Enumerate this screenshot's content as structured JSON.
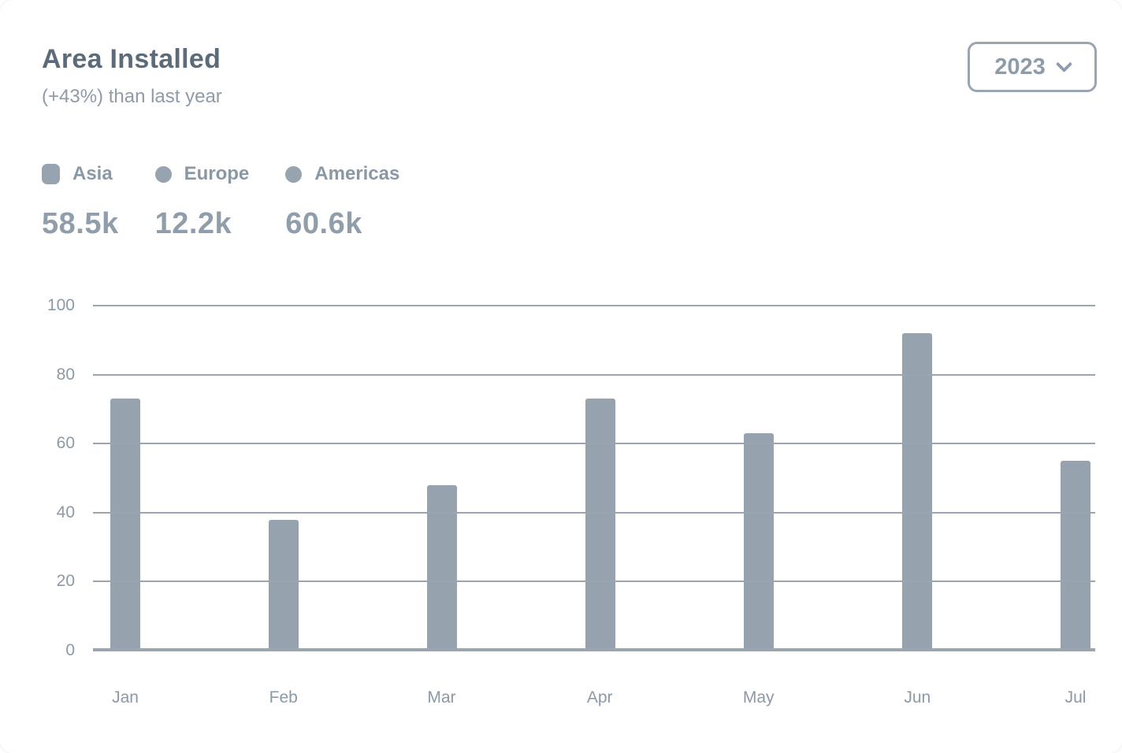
{
  "header": {
    "title": "Area Installed",
    "subtitle": "(+43%) than last year"
  },
  "year_selector": {
    "value": "2023",
    "icon": "chevron-down-icon"
  },
  "legend": {
    "items": [
      {
        "label": "Asia",
        "value": "58.5k",
        "marker_icon": "square-marker-icon",
        "marker_color": "#97A3AF"
      },
      {
        "label": "Europe",
        "value": "12.2k",
        "marker_icon": "dot-marker-icon",
        "marker_color": "#97A3AF"
      },
      {
        "label": "Americas",
        "value": "60.6k",
        "marker_icon": "dot-marker-icon",
        "marker_color": "#97A3AF"
      }
    ]
  },
  "chart_data": {
    "type": "bar",
    "title": "Area Installed",
    "categories": [
      "Jan",
      "Feb",
      "Mar",
      "Apr",
      "May",
      "Jun",
      "Jul"
    ],
    "values": [
      73,
      38,
      48,
      73,
      63,
      92,
      55
    ],
    "xlabel": "",
    "ylabel": "",
    "ylim": [
      0,
      100
    ],
    "yticks": [
      0,
      20,
      40,
      60,
      80,
      100
    ],
    "grid": true,
    "legend_position": "top-left",
    "bar_color": "#96A3AF",
    "grid_color": "#9AA5AF",
    "axis_label_color": "#8C99A7"
  },
  "colors": {
    "card_background": "#FFFFFF",
    "title": "#5C6B7A",
    "subtitle": "#8F9BA8",
    "legend_label": "#8A98A6",
    "legend_value": "#909DAB",
    "button_border": "#9AA5B1",
    "button_text": "#8E9BA8"
  }
}
